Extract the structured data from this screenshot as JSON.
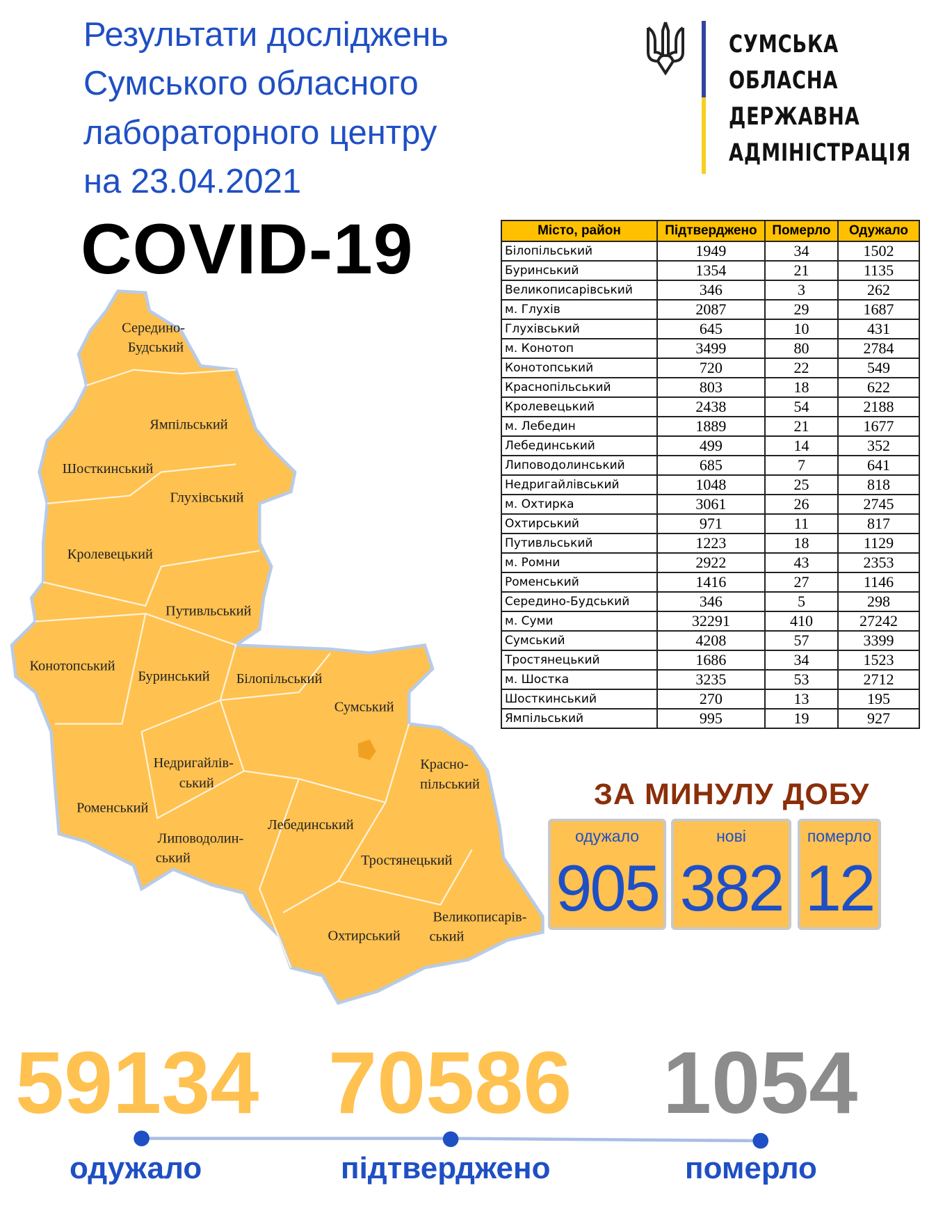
{
  "header": {
    "title_lines": [
      "Результати досліджень",
      "Сумського обласного",
      "лабораторного центру",
      "на 23.04.2021"
    ],
    "covid": "COVID-19"
  },
  "logo": {
    "org_lines": [
      "СУМСЬКА",
      "ОБЛАСНА",
      "ДЕРЖАВНА",
      "АДМІНІСТРАЦІЯ"
    ],
    "icon": "trident-icon",
    "flag_colors": [
      "#3344a0",
      "#f5d020"
    ]
  },
  "map": {
    "fill": "#ffc150",
    "labels": [
      "Середино-",
      "Будський",
      "Ямпільський",
      "Шосткинський",
      "Глухівський",
      "Кролевецький",
      "Путивльський",
      "Конотопський",
      "Буринський",
      "Білопільський",
      "Сумський",
      "Недригайлів-",
      "ський",
      "Красно-",
      "пільський",
      "Роменський",
      "Лебединський",
      "Липоводолин-",
      "ський",
      "Тростянецький",
      "Великописарів-",
      "ський",
      "Охтирський"
    ]
  },
  "table": {
    "headers": [
      "Місто, район",
      "Підтверджено",
      "Померло",
      "Одужало"
    ],
    "rows": [
      [
        "Білопільський",
        "1949",
        "34",
        "1502"
      ],
      [
        "Буринський",
        "1354",
        "21",
        "1135"
      ],
      [
        "Великописарівський",
        "346",
        "3",
        "262"
      ],
      [
        "м. Глухів",
        "2087",
        "29",
        "1687"
      ],
      [
        "Глухівський",
        "645",
        "10",
        "431"
      ],
      [
        "м. Конотоп",
        "3499",
        "80",
        "2784"
      ],
      [
        "Конотопський",
        "720",
        "22",
        "549"
      ],
      [
        "Краснопільський",
        "803",
        "18",
        "622"
      ],
      [
        "Кролевецький",
        "2438",
        "54",
        "2188"
      ],
      [
        "м. Лебедин",
        "1889",
        "21",
        "1677"
      ],
      [
        "Лебединський",
        "499",
        "14",
        "352"
      ],
      [
        "Липоводолинський",
        "685",
        "7",
        "641"
      ],
      [
        "Недригайлівський",
        "1048",
        "25",
        "818"
      ],
      [
        "м. Охтирка",
        "3061",
        "26",
        "2745"
      ],
      [
        "Охтирський",
        "971",
        "11",
        "817"
      ],
      [
        "Путивльський",
        "1223",
        "18",
        "1129"
      ],
      [
        "м. Ромни",
        "2922",
        "43",
        "2353"
      ],
      [
        "Роменський",
        "1416",
        "27",
        "1146"
      ],
      [
        "Середино-Будський",
        "346",
        "5",
        "298"
      ],
      [
        "м. Суми",
        "32291",
        "410",
        "27242"
      ],
      [
        "Сумський",
        "4208",
        "57",
        "3399"
      ],
      [
        "Тростянецький",
        "1686",
        "34",
        "1523"
      ],
      [
        "м. Шостка",
        "3235",
        "53",
        "2712"
      ],
      [
        "Шосткинський",
        "270",
        "13",
        "195"
      ],
      [
        "Ямпільський",
        "995",
        "19",
        "927"
      ]
    ]
  },
  "daily": {
    "title": "ЗА МИНУЛУ ДОБУ",
    "boxes": [
      {
        "label": "одужало",
        "value": "905"
      },
      {
        "label": "нові",
        "value": "382"
      },
      {
        "label": "померло",
        "value": "12"
      }
    ]
  },
  "totals": [
    {
      "value": "59134",
      "label": "одужало",
      "color": "#ffc150"
    },
    {
      "value": "70586",
      "label": "підтверджено",
      "color": "#ffc150"
    },
    {
      "value": "1054",
      "label": "померло",
      "color": "#8c8c8c"
    }
  ]
}
